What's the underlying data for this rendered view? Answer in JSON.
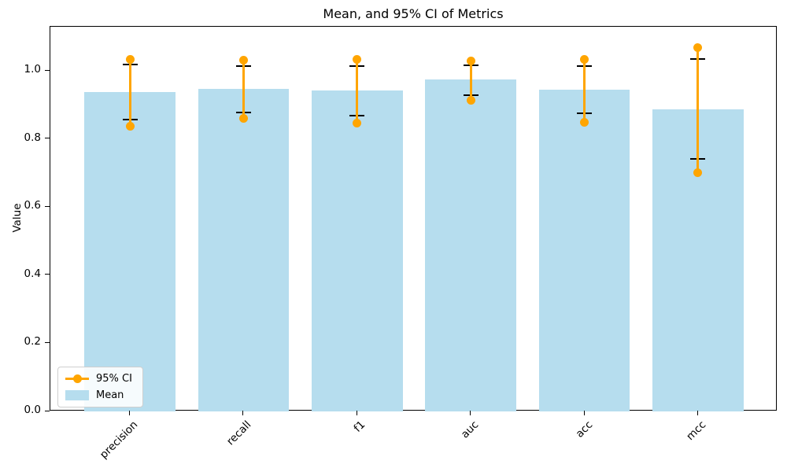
{
  "figure": {
    "title": "Mean, and 95% CI of Metrics",
    "ylabel": "Value"
  },
  "legend": {
    "items": [
      {
        "label": "95% CI",
        "type": "errorbar",
        "color": "#ffa500"
      },
      {
        "label": "Mean",
        "type": "patch",
        "color": "#b6ddee"
      }
    ],
    "position": "lower left"
  },
  "colors": {
    "bar": "#b6ddee",
    "ci": "#ffa500",
    "cap": "#000000",
    "spine": "#000000",
    "background": "#ffffff"
  },
  "chart_data": {
    "type": "bar",
    "title": "Mean, and 95% CI of Metrics",
    "xlabel": "",
    "ylabel": "Value",
    "categories": [
      "precision",
      "recall",
      "f1",
      "auc",
      "acc",
      "mcc"
    ],
    "series": [
      {
        "name": "Mean",
        "values": [
          0.938,
          0.947,
          0.942,
          0.975,
          0.945,
          0.887
        ]
      },
      {
        "name": "95% CI lower",
        "values": [
          0.838,
          0.861,
          0.848,
          0.913,
          0.85,
          0.702
        ]
      },
      {
        "name": "95% CI upper",
        "values": [
          1.035,
          1.032,
          1.035,
          1.03,
          1.035,
          1.069
        ]
      },
      {
        "name": "cap lower",
        "values": [
          0.857,
          0.878,
          0.868,
          0.928,
          0.875,
          0.741
        ]
      },
      {
        "name": "cap upper",
        "values": [
          1.018,
          1.014,
          1.015,
          1.016,
          1.014,
          1.035
        ]
      }
    ],
    "points": [
      {
        "metric": "precision",
        "mean": 0.938,
        "ci_low": 0.838,
        "ci_high": 1.035,
        "cap_low": 0.857,
        "cap_high": 1.018
      },
      {
        "metric": "recall",
        "mean": 0.947,
        "ci_low": 0.861,
        "ci_high": 1.032,
        "cap_low": 0.878,
        "cap_high": 1.014
      },
      {
        "metric": "f1",
        "mean": 0.942,
        "ci_low": 0.848,
        "ci_high": 1.035,
        "cap_low": 0.868,
        "cap_high": 1.015
      },
      {
        "metric": "auc",
        "mean": 0.975,
        "ci_low": 0.913,
        "ci_high": 1.03,
        "cap_low": 0.928,
        "cap_high": 1.016
      },
      {
        "metric": "acc",
        "mean": 0.945,
        "ci_low": 0.85,
        "ci_high": 1.035,
        "cap_low": 0.875,
        "cap_high": 1.014
      },
      {
        "metric": "mcc",
        "mean": 0.887,
        "ci_low": 0.702,
        "ci_high": 1.069,
        "cap_low": 0.741,
        "cap_high": 1.035
      }
    ],
    "yticks": [
      0.0,
      0.2,
      0.4,
      0.6,
      0.8,
      1.0
    ],
    "ylim": [
      0,
      1.13
    ],
    "bar_width_ratio": 0.8,
    "grid": false,
    "legend_position": "lower left"
  }
}
